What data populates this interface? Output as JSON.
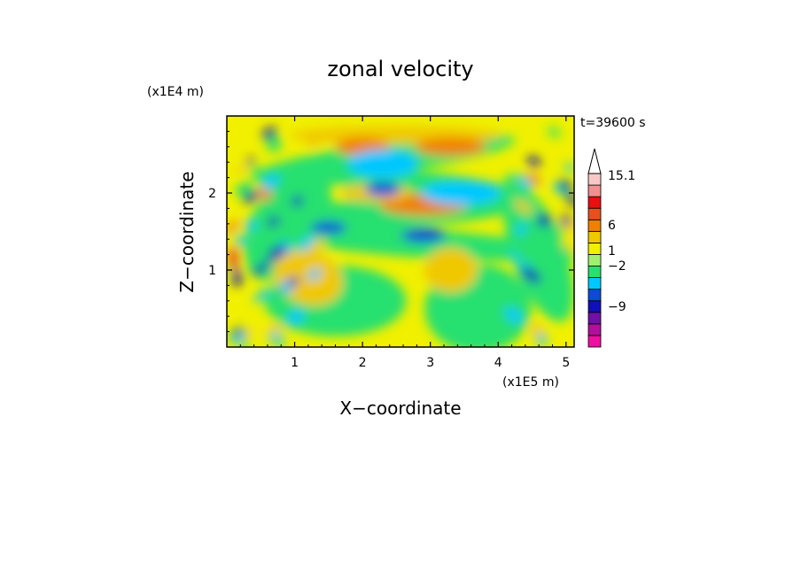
{
  "chart_data": {
    "type": "heatmap",
    "title": "zonal velocity",
    "time_label": "t=39600 s",
    "xlabel": "X−coordinate",
    "ylabel": "Z−coordinate",
    "x_scale_label": "(x1E5 m)",
    "y_scale_label": "(x1E4 m)",
    "xlim": [
      0,
      5.12
    ],
    "ylim": [
      0,
      3.0
    ],
    "x_ticks": [
      "1",
      "2",
      "3",
      "4",
      "5"
    ],
    "y_ticks": [
      "1",
      "2"
    ],
    "colorbar": {
      "tick_labels": [
        "15.1",
        "6",
        "1",
        "−2",
        "−9"
      ],
      "levels": [
        -15,
        -12,
        -9,
        -6,
        -3,
        -2,
        -1,
        0,
        1,
        2,
        3,
        6,
        9,
        12,
        15.1
      ],
      "colors": [
        "#ee10a0",
        "#b0109a",
        "#7010a8",
        "#1010b8",
        "#0a4cd8",
        "#00c8ff",
        "#28e070",
        "#a0f070",
        "#f0f000",
        "#f0c800",
        "#f08000",
        "#e85020",
        "#e81010",
        "#f09090",
        "#f8c8c8"
      ],
      "extend": "max"
    }
  }
}
